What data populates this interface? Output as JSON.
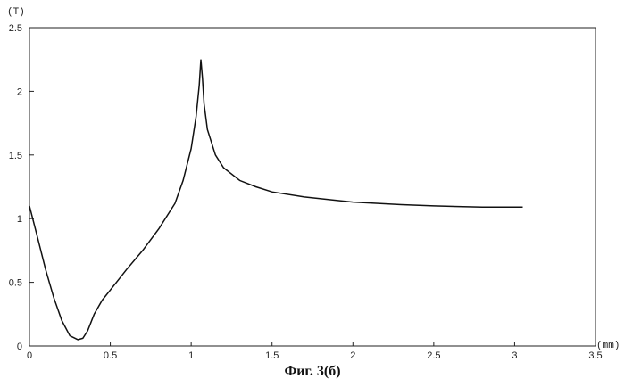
{
  "chart_data": {
    "type": "line",
    "title": "",
    "xlabel": "(mm)",
    "ylabel": "(T)",
    "xlim": [
      0,
      3.5
    ],
    "ylim": [
      0,
      2.5
    ],
    "x_ticks": [
      "0",
      "0.5",
      "1",
      "1.5",
      "2",
      "2.5",
      "3",
      "3.5"
    ],
    "y_ticks": [
      "0",
      "0.5",
      "1",
      "1.5",
      "2",
      "2.5"
    ],
    "grid": false,
    "series": [
      {
        "color": "#111111",
        "x": [
          0,
          0.05,
          0.1,
          0.15,
          0.2,
          0.25,
          0.3,
          0.33,
          0.36,
          0.4,
          0.45,
          0.5,
          0.6,
          0.7,
          0.8,
          0.9,
          0.95,
          1.0,
          1.03,
          1.05,
          1.06,
          1.07,
          1.08,
          1.1,
          1.15,
          1.2,
          1.3,
          1.4,
          1.5,
          1.7,
          2.0,
          2.3,
          2.5,
          2.8,
          3.05
        ],
        "y": [
          1.1,
          0.85,
          0.6,
          0.38,
          0.2,
          0.08,
          0.05,
          0.06,
          0.12,
          0.25,
          0.36,
          0.44,
          0.6,
          0.75,
          0.92,
          1.12,
          1.3,
          1.55,
          1.8,
          2.05,
          2.25,
          2.1,
          1.9,
          1.7,
          1.5,
          1.4,
          1.3,
          1.25,
          1.21,
          1.17,
          1.13,
          1.11,
          1.1,
          1.09,
          1.09
        ]
      }
    ]
  },
  "caption": "Фиг. 3(б)"
}
